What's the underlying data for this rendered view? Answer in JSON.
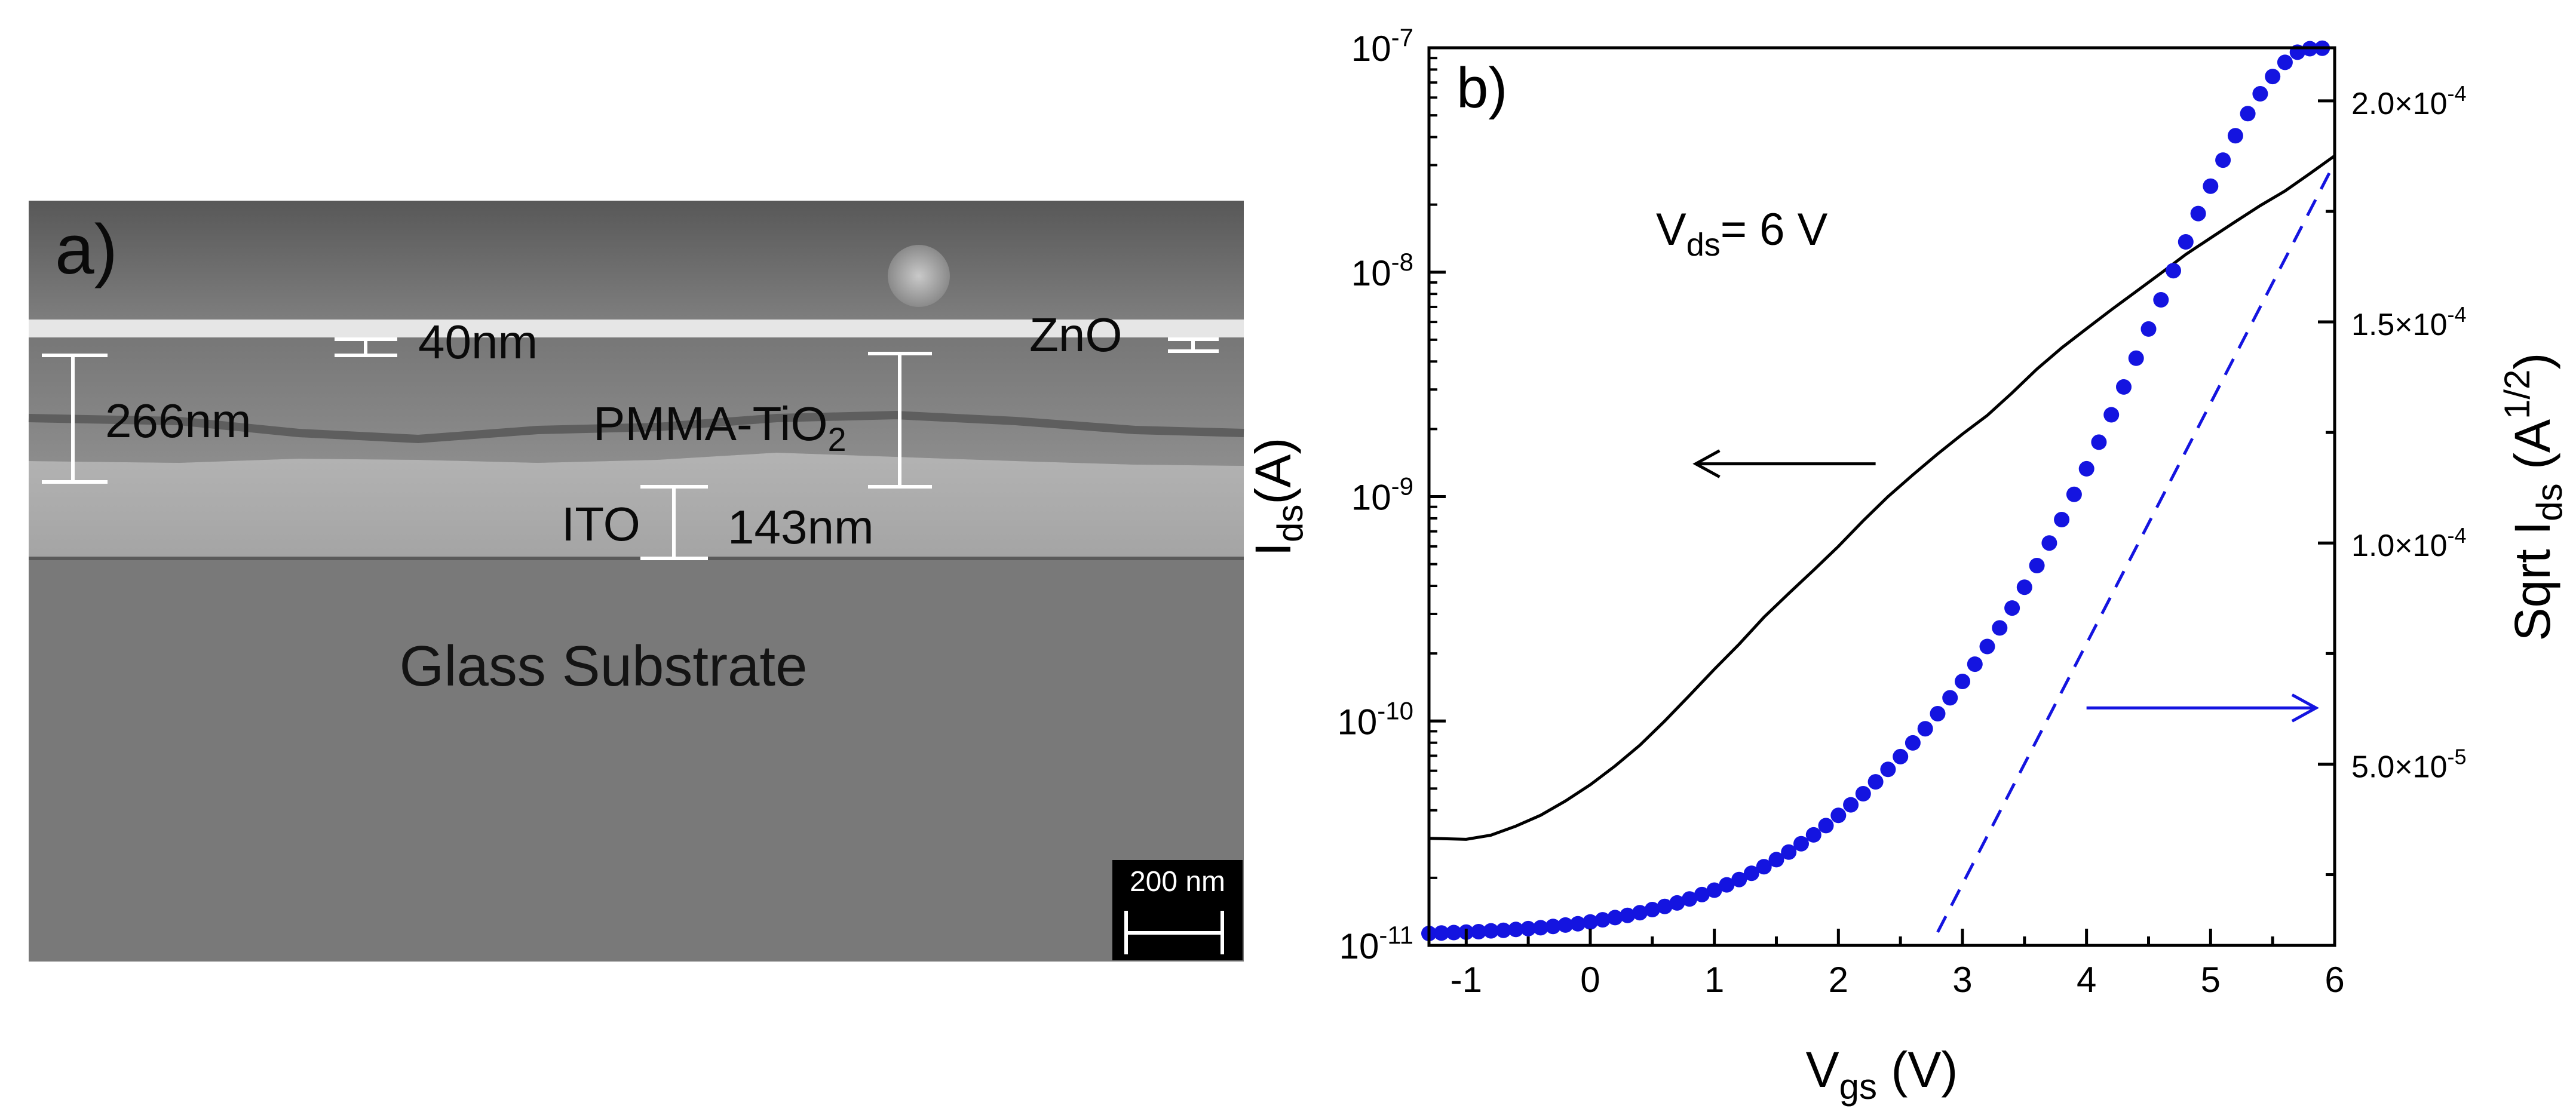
{
  "panel_a": {
    "panel_label": "a)",
    "labels": {
      "zno_thickness": "40nm",
      "zno": "ZnO",
      "dielectric_thickness": "266nm",
      "dielectric_name": "PMMA-TiO",
      "dielectric_sub": "2",
      "ito": "ITO",
      "ito_thickness": "143nm",
      "substrate": "Glass Substrate",
      "scale_bar": "200 nm"
    }
  },
  "chart_data": {
    "type": "line",
    "panel_label": "b)",
    "annotation": {
      "prefix": "V",
      "sub": "ds",
      "suffix": "= 6 V"
    },
    "x_axis": {
      "label_main": "V",
      "label_sub": "gs",
      "label_suffix": " (V)",
      "range": [
        -1.3,
        6
      ],
      "ticks": [
        -1,
        0,
        1,
        2,
        3,
        4,
        5,
        6
      ],
      "tick_labels": [
        "-1",
        "0",
        "1",
        "2",
        "3",
        "4",
        "5",
        "6"
      ]
    },
    "y_left": {
      "label_main": "I",
      "label_sub": "ds",
      "label_suffix": "(A)",
      "scale": "log",
      "range": [
        1e-11,
        1e-07
      ],
      "ticks": [
        {
          "exp": -11,
          "base": "10",
          "sup": "-11"
        },
        {
          "exp": -10,
          "base": "10",
          "sup": "-10"
        },
        {
          "exp": -9,
          "base": "10",
          "sup": "-9"
        },
        {
          "exp": -8,
          "base": "10",
          "sup": "-8"
        },
        {
          "exp": -7,
          "base": "10",
          "sup": "-7"
        }
      ]
    },
    "y_right": {
      "label_main": "Sqrt I",
      "label_sub": "ds",
      "label_mid": " (A",
      "label_sup": "1/2",
      "label_end": ")",
      "scale": "linear",
      "range": [
        9e-06,
        0.000212
      ],
      "ticks": [
        {
          "value": 5e-05,
          "mant": "5.0×10",
          "sup": "-5"
        },
        {
          "value": 0.0001,
          "mant": "1.0×10",
          "sup": "-4"
        },
        {
          "value": 0.00015,
          "mant": "1.5×10",
          "sup": "-4"
        },
        {
          "value": 0.0002,
          "mant": "2.0×10",
          "sup": "-4"
        }
      ]
    },
    "series": [
      {
        "name": "Ids",
        "axis": "left",
        "style": "line",
        "color": "#000000",
        "x": [
          -1.3,
          -1.0,
          -0.8,
          -0.6,
          -0.4,
          -0.2,
          0.0,
          0.2,
          0.4,
          0.6,
          0.8,
          1.0,
          1.2,
          1.4,
          1.6,
          1.8,
          2.0,
          2.2,
          2.4,
          2.6,
          2.8,
          3.0,
          3.2,
          3.4,
          3.6,
          3.8,
          4.0,
          4.2,
          4.4,
          4.6,
          4.8,
          5.0,
          5.2,
          5.4,
          5.6,
          5.8,
          6.0
        ],
        "y": [
          3e-11,
          2.97e-11,
          3.1e-11,
          3.4e-11,
          3.8e-11,
          4.4e-11,
          5.2e-11,
          6.3e-11,
          7.8e-11,
          1e-10,
          1.3e-10,
          1.7e-10,
          2.2e-10,
          2.9e-10,
          3.7e-10,
          4.7e-10,
          6e-10,
          7.8e-10,
          1e-09,
          1.25e-09,
          1.55e-09,
          1.9e-09,
          2.3e-09,
          2.9e-09,
          3.7e-09,
          4.6e-09,
          5.6e-09,
          6.8e-09,
          8.2e-09,
          9.9e-09,
          1.2e-08,
          1.42e-08,
          1.68e-08,
          1.98e-08,
          2.3e-08,
          2.75e-08,
          3.3e-08
        ]
      },
      {
        "name": "Sqrt Ids",
        "axis": "right",
        "style": "markers",
        "color": "#1414e0",
        "x": [
          -1.3,
          -1.2,
          -1.1,
          -1.0,
          -0.9,
          -0.8,
          -0.7,
          -0.6,
          -0.5,
          -0.4,
          -0.3,
          -0.2,
          -0.1,
          0.0,
          0.1,
          0.2,
          0.3,
          0.4,
          0.5,
          0.6,
          0.7,
          0.8,
          0.9,
          1.0,
          1.1,
          1.2,
          1.3,
          1.4,
          1.5,
          1.6,
          1.7,
          1.8,
          1.9,
          2.0,
          2.1,
          2.2,
          2.3,
          2.4,
          2.5,
          2.6,
          2.7,
          2.8,
          2.9,
          3.0,
          3.1,
          3.2,
          3.3,
          3.4,
          3.5,
          3.6,
          3.7,
          3.8,
          3.9,
          4.0,
          4.1,
          4.2,
          4.3,
          4.4,
          4.5,
          4.6,
          4.7,
          4.8,
          4.9,
          5.0,
          5.1,
          5.2,
          5.3,
          5.4,
          5.5,
          5.6,
          5.7,
          5.8,
          5.9
        ],
        "y": [
          1.17e-05,
          1.18e-05,
          1.19e-05,
          1.2e-05,
          1.21e-05,
          1.23e-05,
          1.24e-05,
          1.26e-05,
          1.28e-05,
          1.3e-05,
          1.33e-05,
          1.36e-05,
          1.39e-05,
          1.43e-05,
          1.48e-05,
          1.53e-05,
          1.58e-05,
          1.64e-05,
          1.71e-05,
          1.78e-05,
          1.86e-05,
          1.95e-05,
          2.05e-05,
          2.15e-05,
          2.27e-05,
          2.39e-05,
          2.53e-05,
          2.68e-05,
          2.84e-05,
          3.01e-05,
          3.2e-05,
          3.4e-05,
          3.61e-05,
          3.84e-05,
          4.08e-05,
          4.33e-05,
          4.6e-05,
          4.88e-05,
          5.17e-05,
          5.48e-05,
          5.8e-05,
          6.14e-05,
          6.5e-05,
          6.87e-05,
          7.26e-05,
          7.66e-05,
          8.08e-05,
          8.53e-05,
          9e-05,
          9.49e-05,
          0.0001,
          0.0001053,
          0.000111,
          0.0001168,
          0.0001228,
          0.000129,
          0.0001353,
          0.0001418,
          0.0001484,
          0.000155,
          0.0001616,
          0.0001681,
          0.0001745,
          0.0001807,
          0.0001866,
          0.0001921,
          0.0001971,
          0.0002016,
          0.0002055,
          0.0002087,
          0.000211,
          0.0002118,
          0.0002119
        ]
      },
      {
        "name": "Linear fit",
        "axis": "right",
        "style": "dashed",
        "color": "#1414e0",
        "x": [
          2.8,
          6.0
        ],
        "y": [
          1.2e-05,
          0.000186
        ]
      }
    ],
    "arrows": [
      {
        "name": "left-axis-arrow",
        "color": "#000000",
        "direction": "left",
        "x_from": 2.3,
        "x_to": 0.85,
        "y_left_value": 1.4e-09
      },
      {
        "name": "right-axis-arrow",
        "color": "#1414e0",
        "direction": "right",
        "x_from": 4.0,
        "x_to": 5.85,
        "y_right_value": 6.27e-05
      }
    ]
  }
}
